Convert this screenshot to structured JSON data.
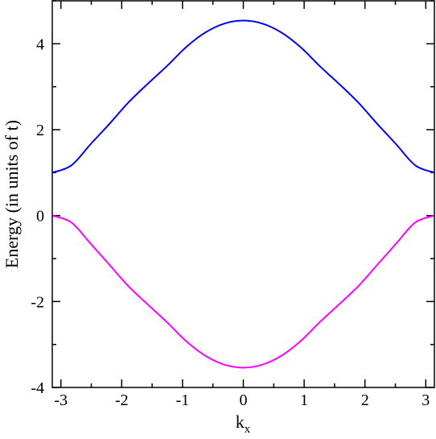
{
  "chart_data": {
    "type": "line",
    "title": "",
    "xlabel": "k",
    "xlabel_subscript": "x",
    "ylabel": "Energy (in units of t)",
    "xlim": [
      -3.14159,
      3.14159
    ],
    "ylim": [
      -4,
      5
    ],
    "x_ticks": [
      -3,
      -2,
      -1,
      0,
      1,
      2,
      3
    ],
    "x_tick_labels": [
      "-3",
      "-2",
      "-1",
      "0",
      "1",
      "2",
      "3"
    ],
    "y_ticks": [
      -4,
      -2,
      0,
      2,
      4
    ],
    "y_tick_labels": [
      "-4",
      "-2",
      "0",
      "2",
      "4"
    ],
    "grid": false,
    "legend": "none",
    "series": [
      {
        "color": "#0000ff",
        "x": [
          -3.1416,
          -2.8274,
          -2.5133,
          -2.1991,
          -1.885,
          -1.5708,
          -1.2566,
          -0.9425,
          -0.6283,
          -0.3142,
          0.0,
          0.3142,
          0.6283,
          0.9425,
          1.2566,
          1.5708,
          1.885,
          2.1991,
          2.5133,
          2.8274,
          3.1416
        ],
        "values": [
          1.0,
          1.17,
          1.66,
          2.14,
          2.64,
          3.07,
          3.48,
          3.92,
          4.26,
          4.47,
          4.54,
          4.47,
          4.26,
          3.92,
          3.48,
          3.07,
          2.64,
          2.14,
          1.66,
          1.17,
          1.0
        ]
      },
      {
        "color": "#ff00ff",
        "x": [
          -3.1416,
          -2.8274,
          -2.5133,
          -2.1991,
          -1.885,
          -1.5708,
          -1.2566,
          -0.9425,
          -0.6283,
          -0.3142,
          0.0,
          0.3142,
          0.6283,
          0.9425,
          1.2566,
          1.5708,
          1.885,
          2.1991,
          2.5133,
          2.8274,
          3.1416
        ],
        "values": [
          0.0,
          -0.16,
          -0.65,
          -1.15,
          -1.65,
          -2.07,
          -2.48,
          -2.92,
          -3.26,
          -3.47,
          -3.54,
          -3.47,
          -3.26,
          -2.92,
          -2.48,
          -2.07,
          -1.65,
          -1.15,
          -0.65,
          -0.16,
          0.0
        ]
      }
    ]
  }
}
